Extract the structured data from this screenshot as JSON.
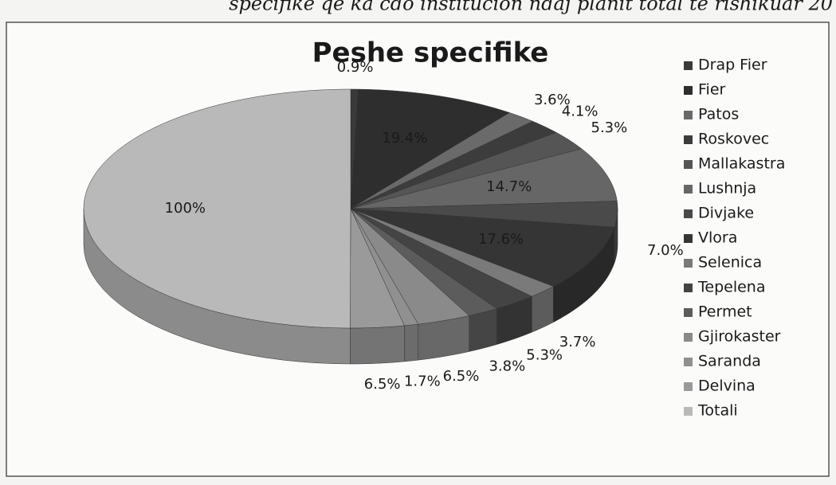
{
  "header": {
    "text": "specifike qe ka cdo institucion ndaj planit total te rishikuar 20"
  },
  "chart_data": {
    "type": "pie",
    "title": "Peshe specifike",
    "categories": [
      "Drap Fier",
      "Fier",
      "Patos",
      "Roskovec",
      "Mallakastra",
      "Lushnja",
      "Divjake",
      "Vlora",
      "Selenica",
      "Tepelena",
      "Permet",
      "Gjirokaster",
      "Saranda",
      "Delvina",
      "Totali"
    ],
    "values": [
      0.9,
      19.4,
      3.6,
      4.1,
      5.3,
      14.7,
      7.0,
      17.6,
      3.7,
      5.3,
      3.8,
      6.5,
      1.7,
      6.5,
      100
    ],
    "value_labels": [
      "0.9%",
      "19.4%",
      "3.6%",
      "4.1%",
      "5.3%",
      "14.7%",
      "7.0%",
      "17.6%",
      "3.7%",
      "5.3%",
      "3.8%",
      "6.5%",
      "1.7%",
      "6.5%",
      "100%"
    ],
    "colors": [
      "#3a3a3a",
      "#2e2e2e",
      "#6a6a6a",
      "#3c3c3c",
      "#555555",
      "#666666",
      "#4a4a4a",
      "#353535",
      "#7a7a7a",
      "#444444",
      "#5c5c5c",
      "#8a8a8a",
      "#909090",
      "#9a9a9a",
      "#b9b9b9"
    ],
    "legend": "right"
  }
}
